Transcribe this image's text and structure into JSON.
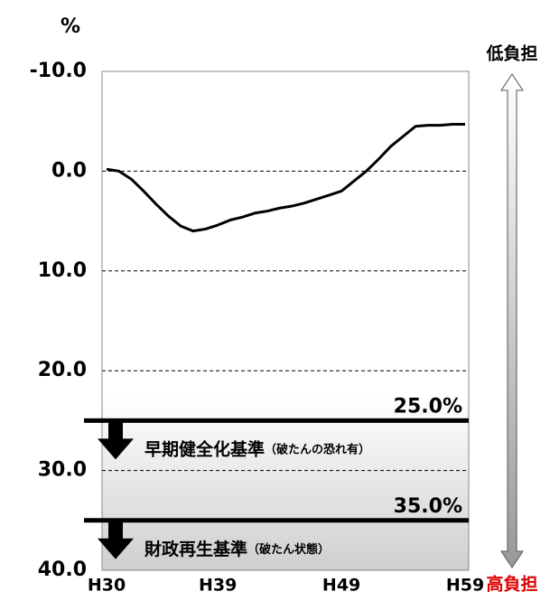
{
  "chart_data": {
    "type": "line",
    "y_unit": "%",
    "categories": [
      "H30",
      null,
      null,
      null,
      null,
      null,
      null,
      null,
      null,
      "H39",
      null,
      null,
      null,
      null,
      null,
      null,
      null,
      null,
      null,
      "H49",
      null,
      null,
      null,
      null,
      null,
      null,
      null,
      null,
      null,
      "H59"
    ],
    "values": [
      -0.2,
      0,
      0.8,
      2,
      3.3,
      4.5,
      5.5,
      6.0,
      5.8,
      5.4,
      4.9,
      4.6,
      4.2,
      4.0,
      3.7,
      3.5,
      3.2,
      2.8,
      2.4,
      2.0,
      1.0,
      0,
      -1.2,
      -2.5,
      -3.5,
      -4.5,
      -4.6,
      -4.6,
      -4.7,
      -4.7
    ],
    "color": "#000000",
    "ylim": [
      -10,
      40
    ],
    "inverted": true,
    "yticks": [
      {
        "value": -10,
        "label": "-10.0"
      },
      {
        "value": 0,
        "label": "0.0"
      },
      {
        "value": 10,
        "label": "10.0"
      },
      {
        "value": 20,
        "label": "20.0"
      },
      {
        "value": 30,
        "label": "30.0"
      },
      {
        "value": 40,
        "label": "40.0"
      }
    ],
    "grid": true,
    "thresholds": [
      {
        "value": 25,
        "label": "25.0%",
        "name": "早期健全化基準",
        "note": "（破たんの恐れ有）"
      },
      {
        "value": 35,
        "label": "35.0%",
        "name": "財政再生基準",
        "note": "（破たん状態）"
      }
    ],
    "top_label": "低負担",
    "bottom_label": "高負担"
  }
}
